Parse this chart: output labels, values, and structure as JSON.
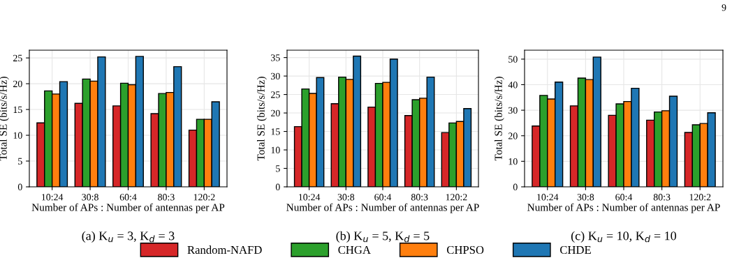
{
  "chart_data": [
    {
      "type": "bar",
      "xlabel": "Number of APs : Number of antennas per AP",
      "ylabel": "Total SE (bits/s/Hz)",
      "categories": [
        "10:24",
        "30:8",
        "60:4",
        "80:3",
        "120:2"
      ],
      "ylim": [
        0,
        26.5
      ],
      "yticks": [
        0,
        5,
        10,
        15,
        20,
        25
      ],
      "grid": true,
      "legend": "bottom",
      "annotations": [
        "(a) K$_{u}$ = 3, K$_{d}$ = 3"
      ],
      "series": [
        {
          "name": "Random-NAFD",
          "color": "#d62728",
          "values": [
            12.4,
            16.2,
            15.7,
            14.2,
            11.0
          ]
        },
        {
          "name": "CHGA",
          "color": "#2ca02c",
          "values": [
            18.6,
            20.9,
            20.1,
            18.1,
            13.1
          ]
        },
        {
          "name": "CHPSO",
          "color": "#ff7f0e",
          "values": [
            18.0,
            20.5,
            19.8,
            18.3,
            13.1
          ]
        },
        {
          "name": "CHDE",
          "color": "#1f77b4",
          "values": [
            20.4,
            25.2,
            25.3,
            23.3,
            16.5
          ]
        }
      ]
    },
    {
      "type": "bar",
      "xlabel": "Number of APs : Number of antennas per AP",
      "ylabel": "Total SE (bits/s/Hz)",
      "categories": [
        "10:24",
        "30:8",
        "60:4",
        "80:3",
        "120:2"
      ],
      "ylim": [
        0,
        37
      ],
      "yticks": [
        0,
        5,
        10,
        15,
        20,
        25,
        30,
        35
      ],
      "grid": true,
      "annotations": [
        "(b) K$_{u}$ = 5, K$_{d}$ = 5"
      ],
      "series": [
        {
          "color": "#d62728",
          "values": [
            16.3,
            22.5,
            21.6,
            19.3,
            14.7
          ]
        },
        {
          "color": "#2ca02c",
          "values": [
            26.5,
            29.7,
            28.0,
            23.6,
            17.3
          ]
        },
        {
          "color": "#ff7f0e",
          "values": [
            25.3,
            29.1,
            28.3,
            24.0,
            17.7
          ]
        },
        {
          "color": "#1f77b4",
          "values": [
            29.6,
            35.4,
            34.6,
            29.7,
            21.2
          ]
        }
      ]
    },
    {
      "type": "bar",
      "xlabel": "Number of APs : Number of antennas per AP",
      "ylabel": "Total SE (bits/s/Hz)",
      "categories": [
        "10:24",
        "30:8",
        "60:4",
        "80:3",
        "120:2"
      ],
      "ylim": [
        0,
        53.5
      ],
      "yticks": [
        0,
        10,
        20,
        30,
        40,
        50
      ],
      "grid": true,
      "annotations": [
        "(c) K$_{u}$ = 10, K$_{d}$ = 10",
        "9"
      ],
      "series": [
        {
          "color": "#d62728",
          "values": [
            23.8,
            31.7,
            28.0,
            26.1,
            21.3
          ]
        },
        {
          "color": "#2ca02c",
          "values": [
            35.8,
            42.6,
            32.5,
            29.3,
            24.3
          ]
        },
        {
          "color": "#ff7f0e",
          "values": [
            34.4,
            42.0,
            33.4,
            29.8,
            24.8
          ]
        },
        {
          "color": "#1f77b4",
          "values": [
            41.0,
            50.8,
            38.6,
            35.5,
            29.0
          ]
        }
      ]
    }
  ]
}
